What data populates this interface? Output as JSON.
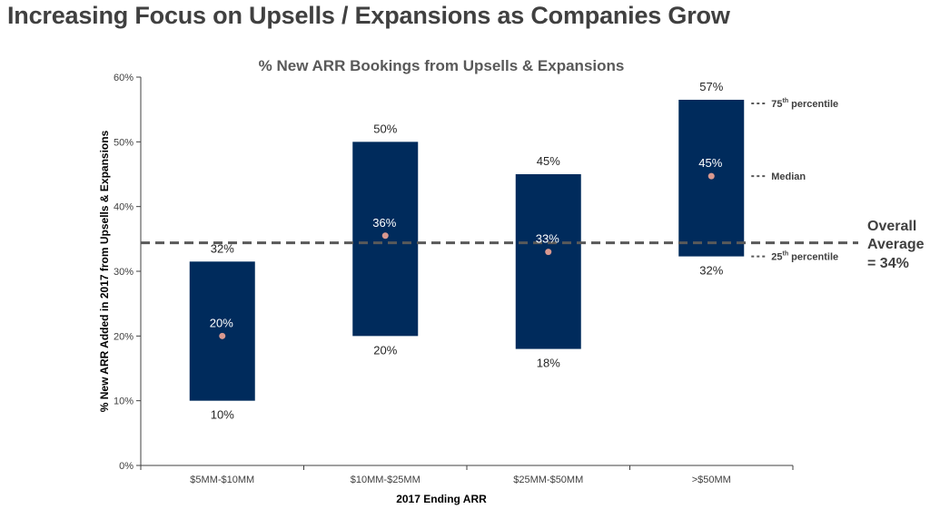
{
  "slide": {
    "title": "Increasing Focus on Upsells / Expansions as Companies Grow"
  },
  "colors": {
    "bar": "#002B5C",
    "median_dot": "#D9988F",
    "average_line": "#595959"
  },
  "chart_data": {
    "type": "bar",
    "subtype": "floating-range",
    "title": "% New ARR Bookings from Upsells & Expansions",
    "xlabel": "2017 Ending ARR",
    "ylabel": "% New ARR Added in 2017 from Upsells & Expansions",
    "ylim": [
      0,
      60
    ],
    "yticks": [
      "0%",
      "10%",
      "20%",
      "30%",
      "40%",
      "50%",
      "60%"
    ],
    "ytick_values": [
      0,
      10,
      20,
      30,
      40,
      50,
      60
    ],
    "categories": [
      "$5MM-$10MM",
      "$10MM-$25MM",
      "$25MM-$50MM",
      ">$50MM"
    ],
    "series": [
      {
        "name": "75th percentile",
        "values": [
          31.5,
          50,
          45,
          56.5
        ],
        "labels": [
          "32%",
          "50%",
          "45%",
          "57%"
        ]
      },
      {
        "name": "Median",
        "values": [
          20,
          35.5,
          33,
          44.7
        ],
        "labels": [
          "20%",
          "36%",
          "33%",
          "45%"
        ]
      },
      {
        "name": "25th percentile",
        "values": [
          10,
          20,
          18,
          32.3
        ],
        "labels": [
          "10%",
          "20%",
          "18%",
          "32%"
        ]
      }
    ],
    "average": {
      "value": 34.4,
      "label_lines": [
        "Overall",
        "Average",
        "= 34%"
      ]
    },
    "legend": [
      {
        "base": "75",
        "sup": "th",
        "rest": " percentile"
      },
      {
        "base": "Median",
        "sup": "",
        "rest": ""
      },
      {
        "base": "25",
        "sup": "th",
        "rest": " percentile"
      }
    ],
    "grid": false,
    "legend_placement": "right"
  }
}
